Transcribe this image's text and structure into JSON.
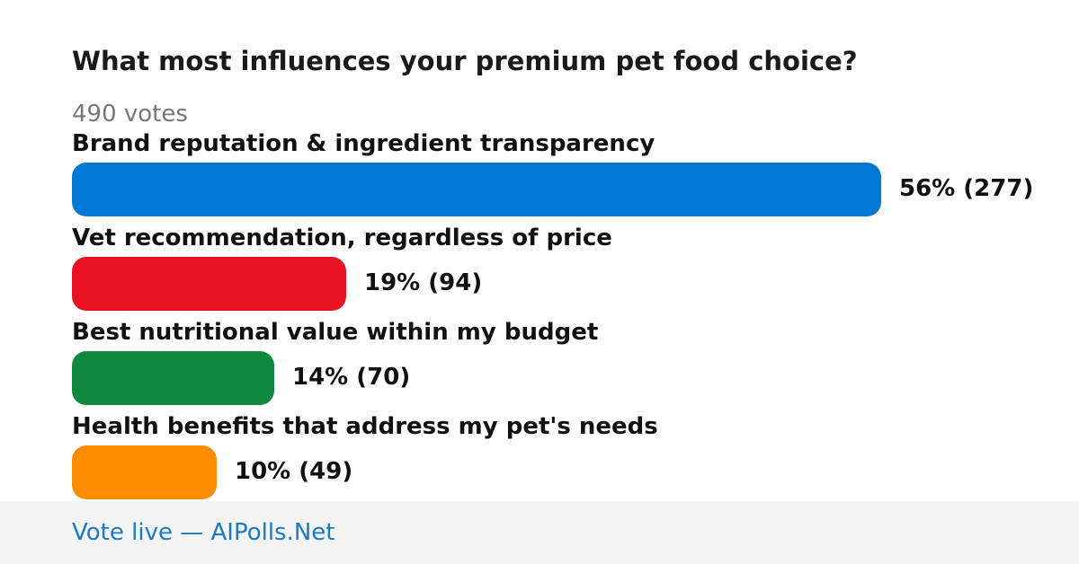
{
  "poll": {
    "title": "What most influences your premium pet food choice?",
    "votes_text": "490 votes"
  },
  "chart_data": {
    "type": "bar",
    "orientation": "horizontal",
    "title": "What most influences your premium pet food choice?",
    "categories": [
      "Brand reputation & ingredient transparency",
      "Vet recommendation, regardless of price",
      "Best nutritional value within my budget",
      "Health benefits that address my pet's needs"
    ],
    "values": [
      56,
      19,
      14,
      10
    ],
    "counts": [
      277,
      94,
      70,
      49
    ],
    "value_labels": [
      "56% (277)",
      "19% (94)",
      "14% (70)",
      "10% (49)"
    ],
    "colors": [
      "#0277d4",
      "#e81224",
      "#10893e",
      "#ff8c00"
    ],
    "unit": "%",
    "total_votes": 490,
    "grid": false,
    "legend": "none"
  },
  "footer": {
    "link_text": "Vote live — AIPolls.Net"
  }
}
